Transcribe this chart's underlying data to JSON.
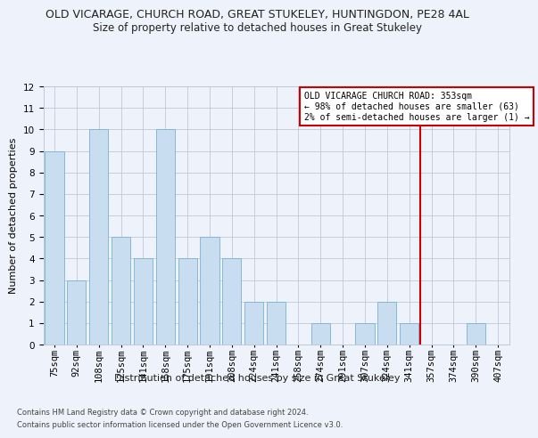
{
  "title1": "OLD VICARAGE, CHURCH ROAD, GREAT STUKELEY, HUNTINGDON, PE28 4AL",
  "title2": "Size of property relative to detached houses in Great Stukeley",
  "xlabel": "Distribution of detached houses by size in Great Stukeley",
  "ylabel": "Number of detached properties",
  "categories": [
    "75sqm",
    "92sqm",
    "108sqm",
    "125sqm",
    "141sqm",
    "158sqm",
    "175sqm",
    "191sqm",
    "208sqm",
    "224sqm",
    "241sqm",
    "258sqm",
    "274sqm",
    "291sqm",
    "307sqm",
    "324sqm",
    "341sqm",
    "357sqm",
    "374sqm",
    "390sqm",
    "407sqm"
  ],
  "values": [
    9,
    3,
    10,
    5,
    4,
    10,
    4,
    5,
    4,
    2,
    2,
    0,
    1,
    0,
    1,
    2,
    1,
    0,
    0,
    1,
    0
  ],
  "bar_color": "#c9ddf0",
  "bar_edge_color": "#7aafd4",
  "ylim": [
    0,
    12
  ],
  "yticks": [
    0,
    1,
    2,
    3,
    4,
    5,
    6,
    7,
    8,
    9,
    10,
    11,
    12
  ],
  "vline_x_index": 16,
  "vline_color": "#cc0000",
  "annotation_text": "OLD VICARAGE CHURCH ROAD: 353sqm\n← 98% of detached houses are smaller (63)\n2% of semi-detached houses are larger (1) →",
  "annotation_box_color": "#ffffff",
  "annotation_box_edge": "#cc0000",
  "footer1": "Contains HM Land Registry data © Crown copyright and database right 2024.",
  "footer2": "Contains public sector information licensed under the Open Government Licence v3.0.",
  "bg_color": "#eef2fa",
  "plot_bg_color": "#eef2fa",
  "grid_color": "#c0c8d8",
  "title_fontsize": 9,
  "subtitle_fontsize": 8.5,
  "axis_label_fontsize": 8,
  "tick_fontsize": 7.5,
  "footer_fontsize": 6
}
